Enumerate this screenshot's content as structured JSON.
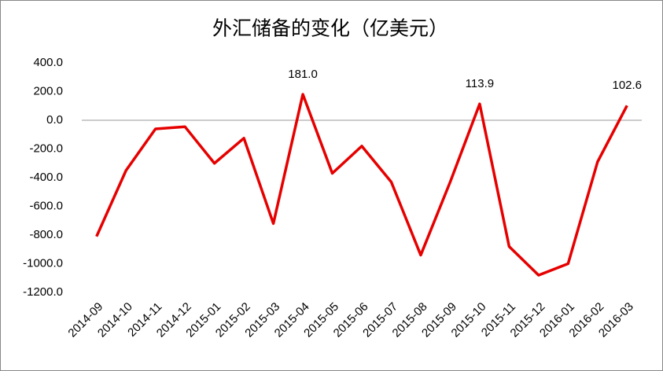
{
  "chart_data": {
    "type": "line",
    "title": "外汇储备的变化（亿美元）",
    "categories": [
      "2014-09",
      "2014-10",
      "2014-11",
      "2014-12",
      "2015-01",
      "2015-02",
      "2015-03",
      "2015-04",
      "2015-05",
      "2015-06",
      "2015-07",
      "2015-08",
      "2015-09",
      "2015-10",
      "2015-11",
      "2015-12",
      "2016-01",
      "2016-02",
      "2016-03"
    ],
    "series": [
      {
        "color": "#e60000",
        "values": [
          -810,
          -350,
          -60,
          -45,
          -300,
          -125,
          -720,
          181.0,
          -370,
          -180,
          -430,
          -940,
          -430,
          113.9,
          -880,
          -1080,
          -1000,
          -290,
          102.6
        ],
        "value_labels": [
          null,
          null,
          null,
          null,
          null,
          null,
          null,
          "181.0",
          null,
          null,
          null,
          null,
          null,
          "113.9",
          null,
          null,
          null,
          null,
          "102.6"
        ]
      }
    ],
    "ylim": [
      -1200,
      400
    ],
    "yticks": [
      {
        "value": 400,
        "label": "400.0"
      },
      {
        "value": 200,
        "label": "200.0"
      },
      {
        "value": 0,
        "label": "0.0"
      },
      {
        "value": -200,
        "label": "-200.0"
      },
      {
        "value": -400,
        "label": "-400.0"
      },
      {
        "value": -600,
        "label": "-600.0"
      },
      {
        "value": -800,
        "label": "-800.0"
      },
      {
        "value": -1000,
        "label": "-1000.0"
      },
      {
        "value": -1200,
        "label": "-1200.0"
      }
    ],
    "grid": false
  }
}
